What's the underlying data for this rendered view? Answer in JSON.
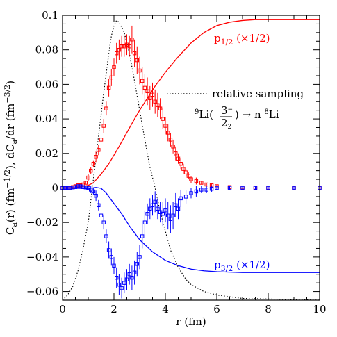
{
  "chart_data": {
    "type": "scatter",
    "xlabel": "r (fm)",
    "ylabel": "C_a(r) (fm^-1/2), dC_a/dr (fm^-3/2)",
    "xlim": [
      0,
      10
    ],
    "ylim": [
      -0.065,
      0.1
    ],
    "x_ticks": [
      0,
      2,
      4,
      6,
      8,
      10
    ],
    "y_ticks": [
      -0.06,
      -0.04,
      -0.02,
      0,
      0.02,
      0.04,
      0.06,
      0.08,
      0.1
    ],
    "x_tick_labels": [
      "0",
      "2",
      "4",
      "6",
      "8",
      "10"
    ],
    "y_tick_labels": [
      "−0.06",
      "−0.04",
      "−0.02",
      "0",
      "0.02",
      "0.04",
      "0.06",
      "0.08",
      "0.1"
    ],
    "reaction_label": "⁹Li(3⁻/2₂) → n ⁸Li",
    "series": [
      {
        "name": "p1/2 (×1/2)",
        "style": "solid",
        "color": "#ff0000",
        "x": [
          0,
          0.5,
          1.0,
          1.2,
          1.5,
          1.8,
          2.0,
          2.2,
          2.5,
          2.8,
          3.0,
          3.3,
          3.6,
          4.0,
          4.5,
          5.0,
          5.5,
          6.0,
          6.5,
          7.0,
          7.5,
          8.0,
          10.0
        ],
        "y": [
          0,
          0.0002,
          0.0015,
          0.003,
          0.008,
          0.014,
          0.019,
          0.024,
          0.032,
          0.04,
          0.045,
          0.052,
          0.059,
          0.067,
          0.076,
          0.084,
          0.09,
          0.094,
          0.096,
          0.097,
          0.0975,
          0.0975,
          0.0975
        ]
      },
      {
        "name": "p3/2 (×1/2)",
        "style": "solid",
        "color": "#0000ff",
        "x": [
          0,
          0.5,
          1.0,
          1.3,
          1.5,
          1.7,
          2.0,
          2.3,
          2.6,
          3.0,
          3.5,
          4.0,
          4.5,
          5.0,
          5.5,
          6.0,
          7.0,
          8.0,
          10.0
        ],
        "y": [
          0,
          -0.0002,
          -0.0003,
          0.0003,
          -0.0002,
          -0.003,
          -0.009,
          -0.015,
          -0.022,
          -0.03,
          -0.037,
          -0.042,
          -0.045,
          -0.047,
          -0.048,
          -0.0485,
          -0.049,
          -0.049,
          -0.049
        ]
      },
      {
        "name": "relative sampling",
        "style": "dotted",
        "color": "#000000",
        "x": [
          0,
          0.2,
          0.4,
          0.6,
          0.8,
          1.0,
          1.2,
          1.4,
          1.6,
          1.8,
          1.9,
          2.0,
          2.1,
          2.2,
          2.4,
          2.6,
          2.8,
          3.0,
          3.2,
          3.4,
          3.6,
          3.8,
          4.0,
          4.2,
          4.5,
          4.8,
          5.0,
          5.5,
          6.0,
          6.5,
          7.0,
          10.0
        ],
        "y": [
          -0.065,
          -0.062,
          -0.057,
          -0.048,
          -0.035,
          -0.02,
          0.005,
          0.03,
          0.055,
          0.078,
          0.088,
          0.094,
          0.097,
          0.096,
          0.09,
          0.078,
          0.062,
          0.045,
          0.028,
          0.012,
          0.0,
          -0.014,
          -0.025,
          -0.036,
          -0.046,
          -0.053,
          -0.056,
          -0.06,
          -0.062,
          -0.063,
          -0.064,
          -0.065
        ]
      },
      {
        "name": "p1/2 derivative (error bars)",
        "style": "points",
        "color": "#ff0000",
        "x": [
          0.0,
          0.1,
          0.2,
          0.3,
          0.4,
          0.5,
          0.6,
          0.7,
          0.8,
          0.9,
          1.0,
          1.1,
          1.2,
          1.3,
          1.4,
          1.5,
          1.6,
          1.7,
          1.8,
          1.9,
          2.0,
          2.1,
          2.2,
          2.3,
          2.4,
          2.5,
          2.6,
          2.7,
          2.8,
          2.9,
          3.0,
          3.1,
          3.2,
          3.3,
          3.4,
          3.5,
          3.6,
          3.7,
          3.8,
          3.9,
          4.0,
          4.1,
          4.2,
          4.3,
          4.4,
          4.5,
          4.6,
          4.7,
          4.8,
          4.9,
          5.0,
          5.2,
          5.4,
          5.6,
          5.8,
          6.0,
          6.5,
          7.0,
          7.5,
          8.0,
          9.0,
          10.0
        ],
        "y": [
          0.0,
          0.0,
          0.0,
          0.0,
          0.0005,
          0.001,
          0.0015,
          0.0015,
          0.002,
          0.003,
          0.006,
          0.01,
          0.014,
          0.018,
          0.022,
          0.028,
          0.036,
          0.046,
          0.058,
          0.064,
          0.07,
          0.078,
          0.08,
          0.082,
          0.082,
          0.083,
          0.082,
          0.086,
          0.078,
          0.074,
          0.068,
          0.062,
          0.058,
          0.056,
          0.052,
          0.054,
          0.05,
          0.048,
          0.046,
          0.04,
          0.036,
          0.032,
          0.028,
          0.024,
          0.02,
          0.017,
          0.014,
          0.011,
          0.009,
          0.007,
          0.005,
          0.004,
          0.003,
          0.002,
          0.0015,
          0.001,
          0.0005,
          0.0003,
          0.0002,
          0.0001,
          0.0,
          0.0
        ],
        "err": [
          0.001,
          0.001,
          0.001,
          0.001,
          0.001,
          0.001,
          0.001,
          0.001,
          0.001,
          0.001,
          0.002,
          0.002,
          0.002,
          0.003,
          0.003,
          0.003,
          0.004,
          0.004,
          0.005,
          0.005,
          0.005,
          0.006,
          0.006,
          0.006,
          0.006,
          0.006,
          0.006,
          0.008,
          0.008,
          0.008,
          0.008,
          0.008,
          0.008,
          0.008,
          0.007,
          0.007,
          0.007,
          0.007,
          0.006,
          0.006,
          0.005,
          0.005,
          0.004,
          0.004,
          0.004,
          0.003,
          0.003,
          0.003,
          0.002,
          0.002,
          0.002,
          0.002,
          0.001,
          0.001,
          0.001,
          0.001,
          0.001,
          0.001,
          0.001,
          0.001,
          0.001,
          0.001
        ]
      },
      {
        "name": "p3/2 derivative (error bars)",
        "style": "points",
        "color": "#0000ff",
        "x": [
          0.0,
          0.1,
          0.2,
          0.3,
          0.4,
          0.5,
          0.6,
          0.7,
          0.8,
          0.9,
          1.0,
          1.1,
          1.2,
          1.3,
          1.4,
          1.5,
          1.6,
          1.7,
          1.8,
          1.9,
          2.0,
          2.1,
          2.2,
          2.3,
          2.4,
          2.5,
          2.6,
          2.7,
          2.8,
          2.9,
          3.0,
          3.1,
          3.2,
          3.3,
          3.4,
          3.5,
          3.6,
          3.7,
          3.8,
          3.9,
          4.0,
          4.1,
          4.2,
          4.3,
          4.4,
          4.5,
          4.6,
          4.8,
          5.0,
          5.2,
          5.4,
          5.6,
          5.8,
          6.0,
          6.5,
          7.0,
          7.5,
          8.0,
          9.0,
          10.0
        ],
        "y": [
          0.0,
          0.0,
          0.0,
          0.0,
          0.0003,
          0.0005,
          0.001,
          0.001,
          0.0005,
          0.0003,
          0.0,
          -0.001,
          -0.002,
          -0.0045,
          -0.01,
          -0.016,
          -0.02,
          -0.028,
          -0.036,
          -0.04,
          -0.045,
          -0.052,
          -0.056,
          -0.058,
          -0.055,
          -0.053,
          -0.05,
          -0.052,
          -0.049,
          -0.044,
          -0.04,
          -0.028,
          -0.02,
          -0.015,
          -0.012,
          -0.01,
          -0.008,
          -0.012,
          -0.014,
          -0.015,
          -0.013,
          -0.016,
          -0.018,
          -0.016,
          -0.01,
          -0.012,
          -0.006,
          -0.005,
          -0.003,
          -0.002,
          -0.001,
          -0.001,
          -0.0005,
          0.0,
          0.0,
          0.0,
          0.0,
          0.0,
          0.0,
          0.0
        ],
        "err": [
          0.001,
          0.001,
          0.001,
          0.001,
          0.001,
          0.001,
          0.001,
          0.001,
          0.001,
          0.001,
          0.001,
          0.002,
          0.002,
          0.003,
          0.003,
          0.003,
          0.004,
          0.004,
          0.005,
          0.005,
          0.005,
          0.006,
          0.006,
          0.006,
          0.006,
          0.006,
          0.006,
          0.007,
          0.007,
          0.007,
          0.007,
          0.007,
          0.007,
          0.006,
          0.006,
          0.006,
          0.006,
          0.006,
          0.006,
          0.007,
          0.007,
          0.008,
          0.008,
          0.008,
          0.007,
          0.006,
          0.005,
          0.004,
          0.003,
          0.003,
          0.002,
          0.002,
          0.002,
          0.001,
          0.001,
          0.001,
          0.001,
          0.001,
          0.001,
          0.001
        ]
      }
    ],
    "colors": {
      "red": "#ff0000",
      "blue": "#0000ff",
      "black": "#000000"
    }
  }
}
